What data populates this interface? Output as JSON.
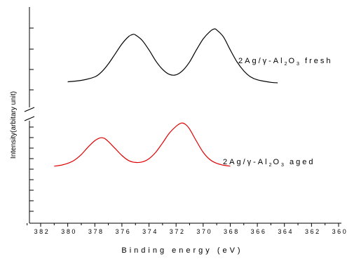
{
  "chart_data": {
    "type": "line",
    "xlabel": "Binding energy (eV)",
    "ylabel": "Intensity(arbitary unit)",
    "xlim": [
      383,
      360
    ],
    "x_reversed": true,
    "x_ticks": [
      382,
      380,
      378,
      376,
      374,
      372,
      370,
      368,
      366,
      364,
      362,
      360
    ],
    "y_axis_break": true,
    "series": [
      {
        "name_prefix": "2Ag/γ-Al",
        "name_sub1": "2",
        "name_mid": "O",
        "name_sub2": "3",
        "name_suffix": " fresh",
        "color": "#000000",
        "x": [
          380,
          379,
          378,
          377.5,
          377,
          376.5,
          376,
          375.5,
          375.2,
          375,
          374.5,
          374,
          373.5,
          373,
          372.5,
          372,
          371.5,
          371,
          370.5,
          370,
          369.5,
          369.2,
          369,
          368.5,
          368,
          367.5,
          367,
          366.5,
          366,
          365,
          364.5
        ],
        "y": [
          0.02,
          0.05,
          0.12,
          0.22,
          0.38,
          0.58,
          0.78,
          0.93,
          0.97,
          0.96,
          0.85,
          0.66,
          0.44,
          0.27,
          0.17,
          0.16,
          0.25,
          0.42,
          0.66,
          0.88,
          1.03,
          1.08,
          1.06,
          0.92,
          0.66,
          0.42,
          0.24,
          0.12,
          0.06,
          0.01,
          0.0
        ]
      },
      {
        "name_prefix": "2Ag/γ-Al",
        "name_sub1": "2",
        "name_mid": "O",
        "name_sub2": "3",
        "name_suffix": " aged",
        "color": "#e00000",
        "x": [
          381,
          380.5,
          380,
          379.5,
          379,
          378.5,
          378,
          377.6,
          377.3,
          377,
          376.5,
          376,
          375.5,
          375,
          374.5,
          374,
          373.5,
          373,
          372.5,
          372,
          371.6,
          371.3,
          371,
          370.5,
          370,
          369.5,
          369,
          368.5,
          368
        ],
        "y": [
          0.02,
          0.04,
          0.08,
          0.15,
          0.27,
          0.43,
          0.57,
          0.63,
          0.62,
          0.55,
          0.4,
          0.25,
          0.14,
          0.1,
          0.11,
          0.18,
          0.32,
          0.52,
          0.73,
          0.88,
          0.95,
          0.92,
          0.82,
          0.56,
          0.32,
          0.16,
          0.08,
          0.04,
          0.02
        ]
      }
    ]
  }
}
